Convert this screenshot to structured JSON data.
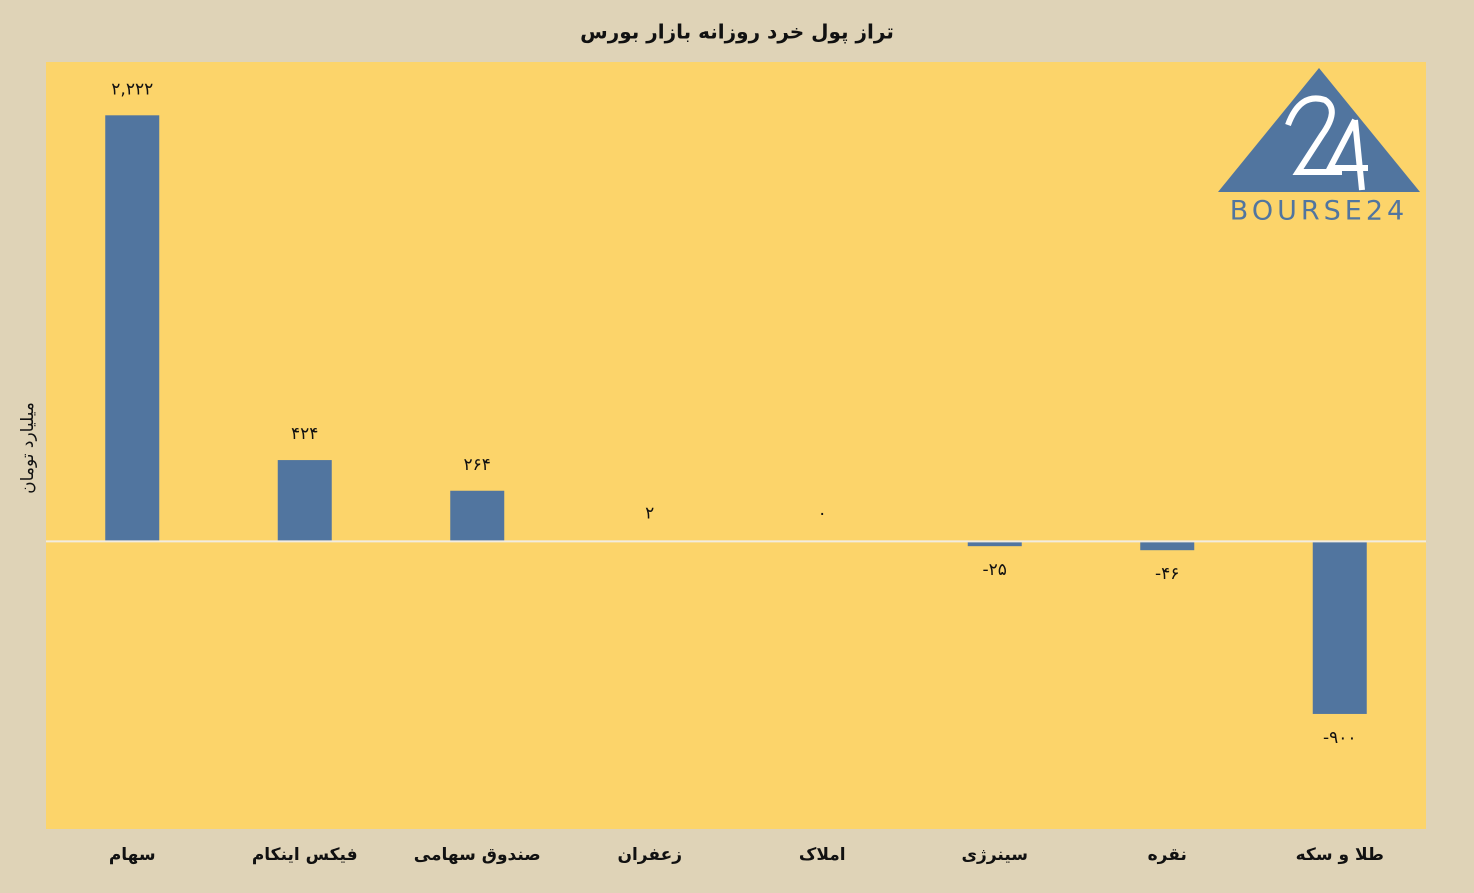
{
  "chart_data": {
    "type": "bar",
    "title": "تراز پول خرد روزانه بازار بورس",
    "y_label": "میلیارد تومان",
    "watermark": "BOURSE24",
    "categories": [
      "سهام",
      "فیکس اینکام",
      "صندوق سهامی",
      "زعفران",
      "املاک",
      "سینرژی",
      "نقره",
      "طلا و سکه"
    ],
    "values": [
      2222,
      424,
      264,
      2,
      0,
      -25,
      -46,
      -900
    ],
    "value_labels": [
      "۲,۲۲۲",
      "۴۲۴",
      "۲۶۴",
      "۲",
      "۰",
      "-۲۵",
      "-۴۶",
      "-۹۰۰"
    ],
    "color": "#51759f",
    "ylim": [
      -1500,
      2500
    ]
  }
}
